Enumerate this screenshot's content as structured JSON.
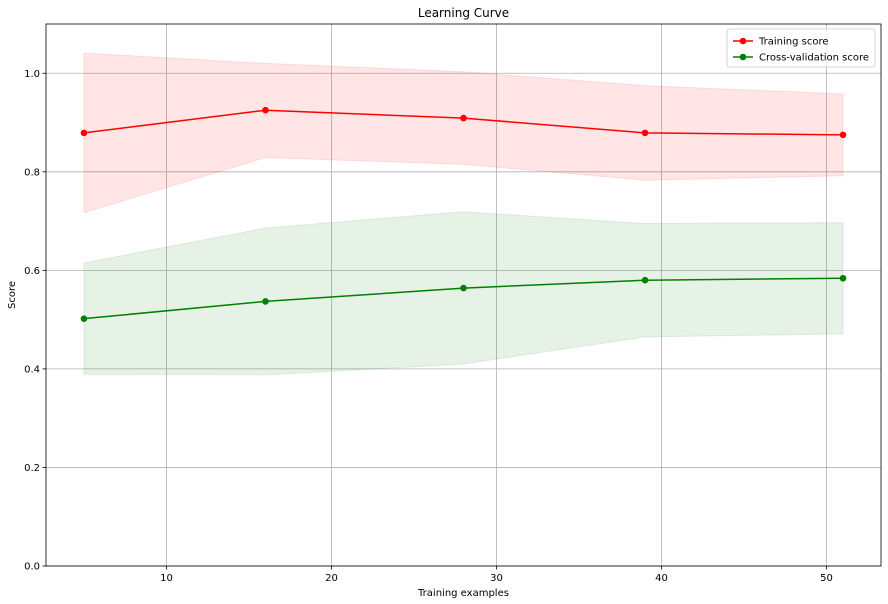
{
  "chart_data": {
    "type": "line",
    "title": "Learning Curve",
    "xlabel": "Training examples",
    "ylabel": "Score",
    "xlim": [
      2.7,
      53.3
    ],
    "ylim": [
      0,
      1.1
    ],
    "xticks": [
      10,
      20,
      30,
      40,
      50
    ],
    "yticks": [
      0.0,
      0.2,
      0.4,
      0.6,
      0.8,
      1.0
    ],
    "grid": true,
    "legend_position": "top-right",
    "x": [
      5,
      16,
      28,
      39,
      51
    ],
    "series": [
      {
        "name": "Training score",
        "color": "#ff0000",
        "band_color": "#ff0000",
        "values": [
          0.879,
          0.925,
          0.909,
          0.879,
          0.875
        ],
        "upper": [
          1.041,
          1.02,
          1.003,
          0.975,
          0.958
        ],
        "lower": [
          0.717,
          0.829,
          0.815,
          0.783,
          0.792
        ]
      },
      {
        "name": "Cross-validation score",
        "color": "#008000",
        "band_color": "#008000",
        "values": [
          0.502,
          0.537,
          0.564,
          0.58,
          0.584
        ],
        "upper": [
          0.615,
          0.686,
          0.719,
          0.695,
          0.697
        ],
        "lower": [
          0.389,
          0.388,
          0.41,
          0.465,
          0.471
        ]
      }
    ]
  }
}
